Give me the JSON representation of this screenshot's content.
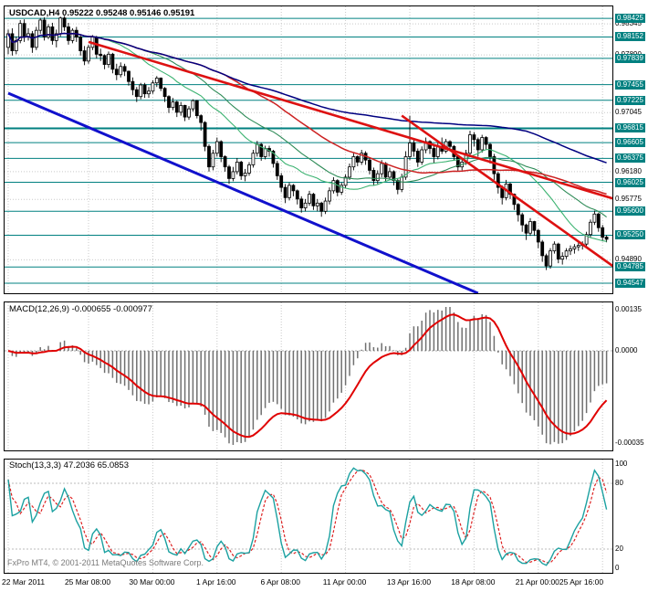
{
  "main_chart": {
    "title": "USDCAD,H4 0.95222 0.95248 0.95146 0.95191",
    "symbol": "USDCAD",
    "timeframe": "H4",
    "open": "0.95222",
    "high": "0.95248",
    "low": "0.95146",
    "close": "0.95191"
  },
  "macd_panel": {
    "title": "MACD(12,26,9) -0.000655 -0.000977",
    "axis": {
      "top": "0.00135",
      "zero": "0.0000",
      "bottom": "-0.00035"
    }
  },
  "stoch_panel": {
    "title": "Stoch(13,3,3) 47.2036 65.0853",
    "axis_labels": [
      "100",
      "80",
      "20",
      "0"
    ]
  },
  "footer": {
    "copyright": "FxPro MT4, © 2001-2011 MetaQuotes Software Corp."
  },
  "colors": {
    "sr_level": "#008080",
    "trend_red": "#dd1111",
    "trend_blue": "#1111cc",
    "ma_fast": "#3cb371",
    "ma_mid": "#2e8b57",
    "ma_slow": "#cc2222",
    "ma_long": "#000080",
    "macd_hist": "#707070",
    "macd_signal": "#e00000",
    "stoch_k": "#1ba1a1",
    "stoch_d": "#dd2222",
    "grid": "#c9c9c9",
    "candle": "#000000"
  },
  "chart_data": {
    "type": "candlestick",
    "symbol": "USDCAD",
    "timeframe": "H4",
    "price_range": {
      "min": 0.944,
      "max": 0.986
    },
    "x_ticks": [
      {
        "i": 0,
        "label": "22 Mar 2011"
      },
      {
        "i": 20,
        "label": "25 Mar 08:00"
      },
      {
        "i": 36,
        "label": "30 Mar 00:00"
      },
      {
        "i": 52,
        "label": "1 Apr 16:00"
      },
      {
        "i": 68,
        "label": "6 Apr 08:00"
      },
      {
        "i": 84,
        "label": "11 Apr 00:00"
      },
      {
        "i": 100,
        "label": "13 Apr 16:00"
      },
      {
        "i": 116,
        "label": "18 Apr 08:00"
      },
      {
        "i": 132,
        "label": "21 Apr 00:00"
      },
      {
        "i": 148,
        "label": "25 Apr 16:00"
      }
    ],
    "price_axis_labels": [
      {
        "label": "0.98425",
        "value": 0.98425,
        "highlighted": true
      },
      {
        "label": "0.98345",
        "value": 0.98345,
        "highlighted": false
      },
      {
        "label": "0.98152",
        "value": 0.98152,
        "highlighted": true
      },
      {
        "label": "0.97890",
        "value": 0.9789,
        "highlighted": false
      },
      {
        "label": "0.97839",
        "value": 0.97839,
        "highlighted": true
      },
      {
        "label": "0.97455",
        "value": 0.97455,
        "highlighted": true
      },
      {
        "label": "0.97225",
        "value": 0.97225,
        "highlighted": true
      },
      {
        "label": "0.97045",
        "value": 0.97045,
        "highlighted": false
      },
      {
        "label": "0.96815",
        "value": 0.96815,
        "highlighted": true,
        "thick": true
      },
      {
        "label": "0.96605",
        "value": 0.96605,
        "highlighted": true
      },
      {
        "label": "0.96375",
        "value": 0.96375,
        "highlighted": true
      },
      {
        "label": "0.96180",
        "value": 0.9618,
        "highlighted": false
      },
      {
        "label": "0.96025",
        "value": 0.96025,
        "highlighted": true
      },
      {
        "label": "0.95775",
        "value": 0.95775,
        "highlighted": false
      },
      {
        "label": "0.95600",
        "value": 0.956,
        "highlighted": true
      },
      {
        "label": "0.95250",
        "value": 0.9525,
        "highlighted": true
      },
      {
        "label": "0.94890",
        "value": 0.9489,
        "highlighted": false
      },
      {
        "label": "0.94785",
        "value": 0.94785,
        "highlighted": true
      },
      {
        "label": "0.94547",
        "value": 0.94547,
        "highlighted": true
      }
    ],
    "trendlines": [
      {
        "name": "upper-red-trendline",
        "color_key": "trend_red",
        "width": 2.6,
        "i1": 20,
        "p1": 0.9808,
        "i2": 151,
        "p2": 0.9578
      },
      {
        "name": "steep-red-trendline",
        "color_key": "trend_red",
        "width": 2.6,
        "i1": 98,
        "p1": 0.97,
        "i2": 151,
        "p2": 0.9478
      },
      {
        "name": "lower-blue-trendline",
        "color_key": "trend_blue",
        "width": 3,
        "i1": 0,
        "p1": 0.9733,
        "i2": 117,
        "p2": 0.944
      }
    ],
    "moving_averages": [
      {
        "period": 21,
        "color_key": "ma_fast",
        "width": 1.1
      },
      {
        "period": 34,
        "color_key": "ma_mid",
        "width": 1.1
      },
      {
        "period": 55,
        "color_key": "ma_slow",
        "width": 1.5
      },
      {
        "period": 130,
        "color_key": "ma_long",
        "width": 1.5
      }
    ],
    "macd": {
      "fast": 12,
      "slow": 26,
      "signal": 9,
      "current_main": -0.000655,
      "current_signal": -0.000977
    },
    "stoch": {
      "k_period": 13,
      "d_period": 3,
      "slowing": 3,
      "current_k": 47.2036,
      "current_d": 65.0853,
      "levels": [
        80,
        20
      ]
    },
    "candles": [
      [
        0.98,
        0.9826,
        0.979,
        0.982
      ],
      [
        0.982,
        0.9828,
        0.9788,
        0.9795
      ],
      [
        0.9795,
        0.9816,
        0.979,
        0.981
      ],
      [
        0.981,
        0.984,
        0.9806,
        0.9835
      ],
      [
        0.9835,
        0.9841,
        0.9808,
        0.9815
      ],
      [
        0.9815,
        0.9828,
        0.981,
        0.982
      ],
      [
        0.982,
        0.9824,
        0.9792,
        0.98
      ],
      [
        0.98,
        0.983,
        0.9796,
        0.9825
      ],
      [
        0.9825,
        0.9843,
        0.982,
        0.984
      ],
      [
        0.984,
        0.9844,
        0.981,
        0.9815
      ],
      [
        0.9815,
        0.9834,
        0.9812,
        0.983
      ],
      [
        0.983,
        0.9836,
        0.9804,
        0.981
      ],
      [
        0.981,
        0.9826,
        0.98,
        0.982
      ],
      [
        0.982,
        0.9845,
        0.9816,
        0.9843
      ],
      [
        0.9843,
        0.9846,
        0.9824,
        0.983
      ],
      [
        0.983,
        0.9836,
        0.9804,
        0.981
      ],
      [
        0.981,
        0.9828,
        0.9806,
        0.9825
      ],
      [
        0.9825,
        0.983,
        0.9808,
        0.9815
      ],
      [
        0.9815,
        0.9818,
        0.9788,
        0.9795
      ],
      [
        0.9795,
        0.9802,
        0.9774,
        0.978
      ],
      [
        0.978,
        0.9804,
        0.9776,
        0.98
      ],
      [
        0.98,
        0.9818,
        0.9796,
        0.9815
      ],
      [
        0.9815,
        0.9817,
        0.9784,
        0.979
      ],
      [
        0.979,
        0.9798,
        0.978,
        0.9788
      ],
      [
        0.9788,
        0.979,
        0.9768,
        0.9775
      ],
      [
        0.9775,
        0.9794,
        0.977,
        0.979
      ],
      [
        0.979,
        0.9792,
        0.9762,
        0.9768
      ],
      [
        0.9768,
        0.9776,
        0.9752,
        0.976
      ],
      [
        0.976,
        0.9778,
        0.9756,
        0.9772
      ],
      [
        0.9772,
        0.9776,
        0.9758,
        0.9765
      ],
      [
        0.9765,
        0.9766,
        0.9744,
        0.975
      ],
      [
        0.975,
        0.9756,
        0.973,
        0.9738
      ],
      [
        0.9738,
        0.9742,
        0.972,
        0.9728
      ],
      [
        0.9728,
        0.9748,
        0.9724,
        0.9745
      ],
      [
        0.9745,
        0.9748,
        0.9726,
        0.9732
      ],
      [
        0.9732,
        0.9742,
        0.9726,
        0.9736
      ],
      [
        0.9736,
        0.9752,
        0.9732,
        0.9748
      ],
      [
        0.9748,
        0.9758,
        0.9742,
        0.9755
      ],
      [
        0.9755,
        0.9756,
        0.9736,
        0.974
      ],
      [
        0.974,
        0.9742,
        0.972,
        0.9728
      ],
      [
        0.9728,
        0.973,
        0.9704,
        0.9712
      ],
      [
        0.9712,
        0.9726,
        0.9708,
        0.972
      ],
      [
        0.972,
        0.9722,
        0.9698,
        0.9705
      ],
      [
        0.9705,
        0.972,
        0.97,
        0.9715
      ],
      [
        0.9715,
        0.9716,
        0.9692,
        0.9698
      ],
      [
        0.9698,
        0.9714,
        0.9694,
        0.971
      ],
      [
        0.971,
        0.9724,
        0.9706,
        0.9722
      ],
      [
        0.9722,
        0.9723,
        0.9696,
        0.97
      ],
      [
        0.97,
        0.9702,
        0.9678,
        0.969
      ],
      [
        0.969,
        0.9692,
        0.9648,
        0.9655
      ],
      [
        0.9655,
        0.9658,
        0.9618,
        0.9625
      ],
      [
        0.9625,
        0.965,
        0.962,
        0.9645
      ],
      [
        0.9645,
        0.9668,
        0.964,
        0.9662
      ],
      [
        0.9662,
        0.9664,
        0.9632,
        0.964
      ],
      [
        0.964,
        0.9642,
        0.9618,
        0.9625
      ],
      [
        0.9625,
        0.9628,
        0.96,
        0.9608
      ],
      [
        0.9608,
        0.9625,
        0.9604,
        0.9618
      ],
      [
        0.9618,
        0.9638,
        0.9614,
        0.9632
      ],
      [
        0.9632,
        0.9634,
        0.9606,
        0.9612
      ],
      [
        0.9612,
        0.9622,
        0.9604,
        0.9616
      ],
      [
        0.9616,
        0.9632,
        0.9612,
        0.9628
      ],
      [
        0.9628,
        0.965,
        0.9624,
        0.9645
      ],
      [
        0.9645,
        0.9663,
        0.964,
        0.9658
      ],
      [
        0.9658,
        0.966,
        0.9634,
        0.964
      ],
      [
        0.964,
        0.9656,
        0.9636,
        0.9652
      ],
      [
        0.9652,
        0.9656,
        0.964,
        0.9648
      ],
      [
        0.9648,
        0.965,
        0.9624,
        0.963
      ],
      [
        0.963,
        0.9634,
        0.9606,
        0.9612
      ],
      [
        0.9612,
        0.9616,
        0.9588,
        0.9595
      ],
      [
        0.9595,
        0.96,
        0.9572,
        0.958
      ],
      [
        0.958,
        0.9602,
        0.9576,
        0.9598
      ],
      [
        0.9598,
        0.96,
        0.9582,
        0.959
      ],
      [
        0.959,
        0.9592,
        0.957,
        0.9578
      ],
      [
        0.9578,
        0.9582,
        0.9558,
        0.9565
      ],
      [
        0.9565,
        0.9578,
        0.956,
        0.9572
      ],
      [
        0.9572,
        0.959,
        0.9568,
        0.9585
      ],
      [
        0.9585,
        0.9587,
        0.9562,
        0.9568
      ],
      [
        0.9568,
        0.9578,
        0.956,
        0.9572
      ],
      [
        0.9572,
        0.9574,
        0.9552,
        0.956
      ],
      [
        0.956,
        0.958,
        0.9556,
        0.9575
      ],
      [
        0.9575,
        0.9595,
        0.957,
        0.959
      ],
      [
        0.959,
        0.961,
        0.9586,
        0.9605
      ],
      [
        0.9605,
        0.9607,
        0.9582,
        0.9588
      ],
      [
        0.9588,
        0.9602,
        0.9584,
        0.9598
      ],
      [
        0.9598,
        0.9614,
        0.9594,
        0.961
      ],
      [
        0.961,
        0.963,
        0.9606,
        0.9625
      ],
      [
        0.9625,
        0.9645,
        0.962,
        0.964
      ],
      [
        0.964,
        0.9642,
        0.9626,
        0.9632
      ],
      [
        0.9632,
        0.965,
        0.9628,
        0.9645
      ],
      [
        0.9645,
        0.9648,
        0.9628,
        0.9635
      ],
      [
        0.9635,
        0.9638,
        0.9614,
        0.962
      ],
      [
        0.962,
        0.9624,
        0.9598,
        0.9605
      ],
      [
        0.9605,
        0.962,
        0.96,
        0.9615
      ],
      [
        0.9615,
        0.9635,
        0.961,
        0.963
      ],
      [
        0.963,
        0.9632,
        0.9604,
        0.961
      ],
      [
        0.961,
        0.9624,
        0.9606,
        0.9618
      ],
      [
        0.9618,
        0.962,
        0.9598,
        0.9605
      ],
      [
        0.9605,
        0.9608,
        0.9585,
        0.9592
      ],
      [
        0.9592,
        0.9615,
        0.9588,
        0.961
      ],
      [
        0.961,
        0.9648,
        0.9606,
        0.964
      ],
      [
        0.964,
        0.97,
        0.9635,
        0.966
      ],
      [
        0.966,
        0.9665,
        0.964,
        0.9648
      ],
      [
        0.9648,
        0.9652,
        0.9625,
        0.9632
      ],
      [
        0.9632,
        0.9655,
        0.9628,
        0.965
      ],
      [
        0.965,
        0.9668,
        0.9645,
        0.9662
      ],
      [
        0.9662,
        0.9664,
        0.9644,
        0.9652
      ],
      [
        0.9652,
        0.9656,
        0.963,
        0.964
      ],
      [
        0.964,
        0.966,
        0.9636,
        0.9655
      ],
      [
        0.9655,
        0.9668,
        0.9644,
        0.9648
      ],
      [
        0.9648,
        0.9666,
        0.9645,
        0.9662
      ],
      [
        0.9662,
        0.9664,
        0.9648,
        0.9655
      ],
      [
        0.9655,
        0.9657,
        0.9634,
        0.964
      ],
      [
        0.964,
        0.9642,
        0.9618,
        0.9625
      ],
      [
        0.9625,
        0.9638,
        0.962,
        0.9632
      ],
      [
        0.9632,
        0.965,
        0.9628,
        0.9645
      ],
      [
        0.9645,
        0.9678,
        0.9642,
        0.9672
      ],
      [
        0.9672,
        0.9676,
        0.9655,
        0.9665
      ],
      [
        0.9665,
        0.9668,
        0.964,
        0.965
      ],
      [
        0.965,
        0.9672,
        0.9646,
        0.9668
      ],
      [
        0.9668,
        0.967,
        0.965,
        0.9658
      ],
      [
        0.9658,
        0.966,
        0.963,
        0.964
      ],
      [
        0.964,
        0.9644,
        0.9606,
        0.9615
      ],
      [
        0.9615,
        0.9618,
        0.9586,
        0.9595
      ],
      [
        0.9595,
        0.9598,
        0.957,
        0.958
      ],
      [
        0.958,
        0.9606,
        0.9576,
        0.96
      ],
      [
        0.96,
        0.9602,
        0.9578,
        0.9585
      ],
      [
        0.9585,
        0.9586,
        0.9562,
        0.957
      ],
      [
        0.957,
        0.9572,
        0.9545,
        0.9555
      ],
      [
        0.9555,
        0.9558,
        0.953,
        0.954
      ],
      [
        0.954,
        0.9542,
        0.9518,
        0.9528
      ],
      [
        0.9528,
        0.955,
        0.9524,
        0.9545
      ],
      [
        0.9545,
        0.9546,
        0.9524,
        0.9532
      ],
      [
        0.9532,
        0.9534,
        0.9506,
        0.9515
      ],
      [
        0.9515,
        0.9518,
        0.9486,
        0.9495
      ],
      [
        0.9495,
        0.9498,
        0.9474,
        0.948
      ],
      [
        0.948,
        0.9506,
        0.9476,
        0.9502
      ],
      [
        0.9502,
        0.9516,
        0.9498,
        0.9512
      ],
      [
        0.9512,
        0.9514,
        0.9484,
        0.949
      ],
      [
        0.949,
        0.95,
        0.9482,
        0.9494
      ],
      [
        0.9494,
        0.9506,
        0.949,
        0.9502
      ],
      [
        0.9502,
        0.951,
        0.9496,
        0.9505
      ],
      [
        0.9505,
        0.9512,
        0.9498,
        0.9508
      ],
      [
        0.9508,
        0.9515,
        0.9502,
        0.951
      ],
      [
        0.951,
        0.9516,
        0.9504,
        0.9512
      ],
      [
        0.9512,
        0.953,
        0.9508,
        0.9526
      ],
      [
        0.9526,
        0.9548,
        0.9522,
        0.9544
      ],
      [
        0.9544,
        0.9561,
        0.954,
        0.9556
      ],
      [
        0.9556,
        0.9558,
        0.953,
        0.9536
      ],
      [
        0.9536,
        0.954,
        0.9516,
        0.9522
      ],
      [
        0.95222,
        0.95248,
        0.95146,
        0.95191
      ]
    ]
  }
}
